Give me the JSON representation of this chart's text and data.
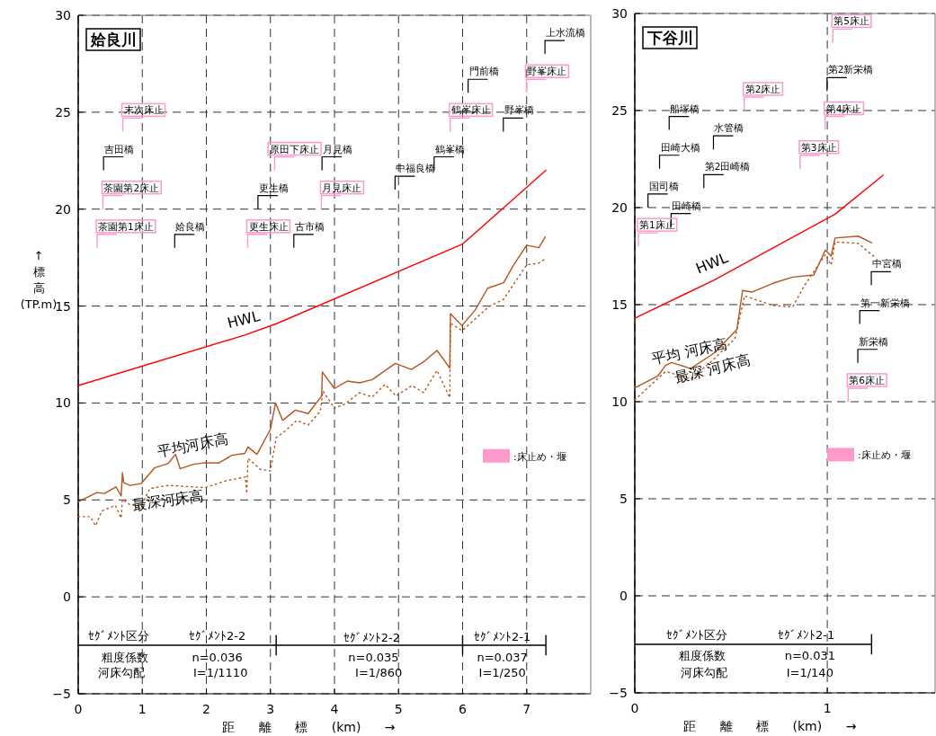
{
  "chart_data": [
    {
      "type": "line",
      "title": "姶良川",
      "ylabel": "↑標高(TP.m)",
      "xlabel": "距 離 標 (km) →",
      "xlim": [
        0,
        8
      ],
      "ylim": [
        -5,
        30
      ],
      "xticks": [
        0,
        1,
        2,
        3,
        4,
        5,
        6,
        7
      ],
      "yticks": [
        -5,
        0,
        5,
        10,
        15,
        20,
        25,
        30
      ],
      "grid": true,
      "legend": "right",
      "series": [
        {
          "name": "HWL",
          "color": "#ff0000",
          "x": [
            0,
            2.6,
            3.1,
            6,
            7.3
          ],
          "values": [
            10.9,
            13.5,
            14.1,
            18.2,
            22.0
          ]
        },
        {
          "name": "平均河床高",
          "color": "#b5541c",
          "x": [
            0,
            0.29,
            0.41,
            0.59,
            0.67,
            0.69,
            0.71,
            0.81,
            0.98,
            1.19,
            1.4,
            1.52,
            1.59,
            1.8,
            1.98,
            2.19,
            2.4,
            2.6,
            2.65,
            2.79,
            3.0,
            3.08,
            3.19,
            3.39,
            3.59,
            3.8,
            3.81,
            4.0,
            4.2,
            4.39,
            4.59,
            4.95,
            5.2,
            5.39,
            5.6,
            5.8,
            5.81,
            5.99,
            6.2,
            6.39,
            6.64,
            6.79,
            7.0,
            7.19,
            7.29
          ],
          "values": [
            4.9,
            5.38,
            5.33,
            5.67,
            5.2,
            6.41,
            5.89,
            5.75,
            5.84,
            6.65,
            6.87,
            7.35,
            6.61,
            6.84,
            6.92,
            6.9,
            7.3,
            7.4,
            7.73,
            7.35,
            8.64,
            10.01,
            9.1,
            9.63,
            9.45,
            10.36,
            11.6,
            10.75,
            11.13,
            11.04,
            11.21,
            12.04,
            11.73,
            12.12,
            12.71,
            11.8,
            14.61,
            13.99,
            14.81,
            15.92,
            16.2,
            17.08,
            18.14,
            18.01,
            18.57
          ]
        },
        {
          "name": "最深河床高",
          "color": "#b5541c",
          "line_style": "dotted",
          "x": [
            0,
            0.19,
            0.27,
            0.37,
            0.58,
            0.67,
            0.69,
            0.81,
            0.98,
            1.12,
            1.41,
            1.98,
            2.3,
            2.61,
            2.63,
            2.65,
            2.84,
            3.0,
            3.09,
            3.23,
            3.41,
            3.59,
            3.78,
            3.82,
            4.0,
            4.17,
            4.39,
            4.59,
            4.79,
            4.96,
            5.21,
            5.39,
            5.6,
            5.8,
            5.81,
            5.99,
            6.41,
            6.64,
            7.0,
            7.19,
            7.29
          ],
          "values": [
            4.14,
            4.14,
            3.66,
            4.43,
            4.72,
            4.06,
            5.03,
            4.74,
            4.69,
            5.59,
            5.75,
            5.63,
            5.98,
            6.19,
            5.33,
            7.15,
            6.58,
            6.5,
            8.22,
            8.55,
            9.1,
            8.86,
            9.58,
            10.62,
            9.72,
            9.96,
            10.53,
            10.31,
            10.96,
            10.36,
            10.9,
            10.53,
            11.68,
            10.27,
            14.12,
            13.73,
            14.97,
            15.35,
            17.13,
            17.21,
            17.44
          ]
        },
        {
          "type": "line",
          "color": "#000000",
          "x": [
            0,
            3.09,
            3.09,
            3.09,
            3.09,
            6,
            6,
            6,
            6,
            7.3,
            7.3,
            7.3
          ],
          "values": [
            -2.5,
            -2.5,
            -2,
            -3,
            -2.5,
            -2.5,
            -2,
            -3,
            -2.5,
            -2.5,
            -2,
            -3
          ]
        },
        {
          "type": "scatter",
          "color": "#000000",
          "x": [
            0.55,
            1.66,
            2.96,
            3.52,
            3.96,
            5.1,
            5.71,
            6.24,
            6.79,
            7.44
          ],
          "values": [
            22.35,
            18.35,
            20.35,
            18.35,
            22.35,
            21.35,
            22.35,
            26.35,
            24.35,
            28.35
          ],
          "value_labels": [
            "吉田橋",
            "姶良橋",
            "更生橋",
            "古市橋",
            "月見橋",
            "中福良橋",
            "鶴峯橋",
            "門前橋",
            "野峯橋",
            "上水流橋"
          ]
        },
        {
          "type": "scatter",
          "name": ":床止め・堰",
          "color": "#ff99cc",
          "x": [
            0.85,
            0.54,
            0.45,
            3.22,
            2.8,
            3.95,
            5.96,
            7.15
          ],
          "values": [
            24.35,
            20.35,
            18.35,
            22.35,
            18.35,
            20.35,
            24.35,
            26.35
          ],
          "value_labels": [
            "末次床止",
            "茶園第2床止",
            "茶園第1床止",
            "原田下床止",
            "更生床止",
            "月見床止",
            "鶴峯床止",
            "野峯床止"
          ]
        }
      ],
      "annotations": [
        "ｾｸﾞﾒﾝﾄ区分",
        "ｾｸﾞﾒﾝﾄ2-2",
        "ｾｸﾞﾒﾝﾄ2-2",
        "ｾｸﾞﾒﾝﾄ2-1",
        "粗度係数",
        "河床勾配",
        "n=0.036",
        "I=1/1110",
        "n=0.035",
        "I=1/860",
        "n=0.037",
        "I=1/250"
      ]
    },
    {
      "type": "line",
      "title": "下谷川",
      "xlabel": "距 離 標 (km) →",
      "xlim": [
        0,
        1.56
      ],
      "ylim": [
        -5,
        30
      ],
      "xticks": [
        0,
        1
      ],
      "yticks": [
        -5,
        0,
        5,
        10,
        15,
        20,
        25,
        30
      ],
      "grid": true,
      "legend": "right",
      "series": [
        {
          "name": "HWL",
          "color": "#ff0000",
          "x": [
            0,
            0.41,
            1.04,
            1.29
          ],
          "values": [
            14.3,
            16.26,
            19.66,
            21.67
          ]
        },
        {
          "name": "平均 河床高",
          "color": "#b5541c",
          "x": [
            0,
            0.12,
            0.16,
            0.19,
            0.29,
            0.41,
            0.53,
            0.56,
            0.61,
            0.72,
            0.82,
            0.93,
            0.99,
            1.02,
            1.04,
            1.16,
            1.23
          ],
          "values": [
            10.71,
            11.33,
            11.87,
            12.02,
            11.71,
            12.49,
            13.72,
            15.73,
            15.65,
            16.11,
            16.42,
            16.53,
            17.81,
            17.5,
            18.43,
            18.53,
            18.19
          ]
        },
        {
          "name": "最深 河床高",
          "color": "#b5541c",
          "line_style": "dotted",
          "x": [
            0,
            0.16,
            0.29,
            0.41,
            0.52,
            0.57,
            0.72,
            0.82,
            0.88,
            0.99,
            1.02,
            1.04,
            1.16,
            1.25
          ],
          "values": [
            10.09,
            11.56,
            11.17,
            12.18,
            13.25,
            15.45,
            14.95,
            14.88,
            15.96,
            17.58,
            17.04,
            18.23,
            18.16,
            17.42
          ]
        },
        {
          "type": "line",
          "color": "#000000",
          "x": [
            0,
            1.23,
            1.23,
            1.23
          ],
          "values": [
            -2.5,
            -2.5,
            -2,
            -3
          ]
        },
        {
          "type": "scatter",
          "color": "#000000",
          "x": [
            1.05,
            0.23,
            0.46,
            0.18,
            0.41,
            0.12,
            0.24,
            1.28,
            1.22,
            1.21
          ],
          "values": [
            26.35,
            24.35,
            23.35,
            22.35,
            21.35,
            20.35,
            19.35,
            16.35,
            14.35,
            12.35
          ],
          "value_labels": [
            "第2新栄橋",
            "船塚橋",
            "水管橋",
            "田崎大橋",
            "第2田崎橋",
            "国司橋",
            "田崎橋",
            "中宮橋",
            "第一新栄橋",
            "新栄橋"
          ]
        },
        {
          "type": "scatter",
          "name": ":床止め・堰",
          "color": "#ff99cc",
          "x": [
            1.08,
            0.62,
            1.04,
            0.91,
            0.07,
            1.16
          ],
          "values": [
            28.85,
            25.35,
            24.35,
            22.35,
            18.35,
            10.35
          ],
          "value_labels": [
            "第5床止",
            "第2床止",
            "第4床止",
            "第3床止",
            "第1床止",
            "第6床止"
          ]
        }
      ],
      "annotations": [
        "ｾｸﾞﾒﾝﾄ区分",
        "ｾｸﾞﾒﾝﾄ2-1",
        "粗度係数",
        "河床勾配",
        "n=0.031",
        "I=1/140"
      ]
    }
  ]
}
